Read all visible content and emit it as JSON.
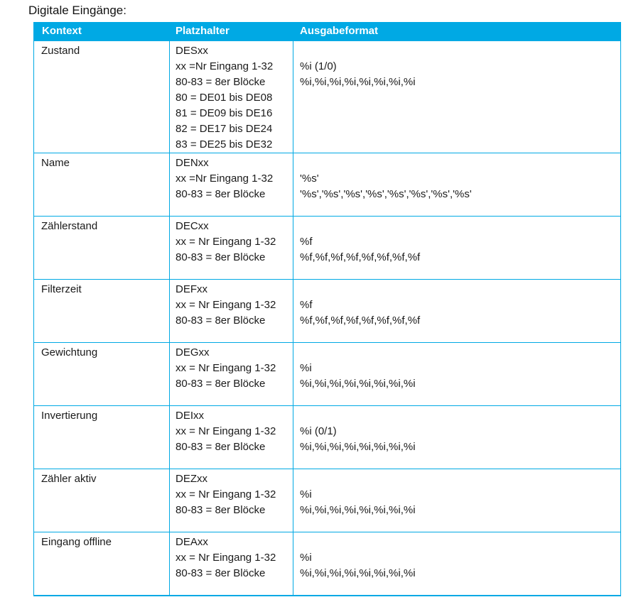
{
  "title": "Digitale Eingänge:",
  "colors": {
    "accent": "#00a9e4",
    "header_text": "#ffffff",
    "body_text": "#1a1a1a"
  },
  "table": {
    "columns": [
      "Kontext",
      "Platzhalter",
      "Ausgabeformat"
    ],
    "rows": [
      {
        "kontext": "Zustand",
        "platzhalter": [
          "DESxx",
          "xx =Nr Eingang 1-32",
          "80-83 = 8er Blöcke",
          "80 = DE01 bis DE08",
          "81 = DE09 bis DE16",
          "82 = DE17 bis DE24",
          "83 = DE25 bis DE32"
        ],
        "ausgabeformat": [
          "%i (1/0)",
          "%i,%i,%i,%i,%i,%i,%i,%i"
        ]
      },
      {
        "kontext": "Name",
        "platzhalter": [
          "DENxx",
          "xx =Nr Eingang 1-32",
          "80-83 = 8er Blöcke"
        ],
        "ausgabeformat": [
          "'%s'",
          "'%s','%s','%s','%s','%s','%s','%s','%s'"
        ]
      },
      {
        "kontext": "Zählerstand",
        "platzhalter": [
          "DECxx",
          "xx = Nr Eingang 1-32",
          "80-83 = 8er Blöcke"
        ],
        "ausgabeformat": [
          "%f",
          "%f,%f,%f,%f,%f,%f,%f,%f"
        ]
      },
      {
        "kontext": "Filterzeit",
        "platzhalter": [
          "DEFxx",
          "xx = Nr Eingang 1-32",
          "80-83 = 8er Blöcke"
        ],
        "ausgabeformat": [
          "%f",
          "%f,%f,%f,%f,%f,%f,%f,%f"
        ]
      },
      {
        "kontext": "Gewichtung",
        "platzhalter": [
          "DEGxx",
          "xx = Nr Eingang 1-32",
          "80-83 = 8er Blöcke"
        ],
        "ausgabeformat": [
          "%i",
          "%i,%i,%i,%i,%i,%i,%i,%i"
        ]
      },
      {
        "kontext": "Invertierung",
        "platzhalter": [
          "DEIxx",
          "xx = Nr Eingang 1-32",
          "80-83 = 8er Blöcke"
        ],
        "ausgabeformat": [
          "%i (0/1)",
          "%i,%i,%i,%i,%i,%i,%i,%i"
        ]
      },
      {
        "kontext": "Zähler aktiv",
        "platzhalter": [
          "DEZxx",
          "xx = Nr Eingang 1-32",
          "80-83 = 8er Blöcke"
        ],
        "ausgabeformat": [
          "%i",
          "%i,%i,%i,%i,%i,%i,%i,%i"
        ]
      },
      {
        "kontext": "Eingang offline",
        "platzhalter": [
          "DEAxx",
          "xx = Nr Eingang 1-32",
          "80-83 = 8er Blöcke"
        ],
        "ausgabeformat": [
          "%i",
          "%i,%i,%i,%i,%i,%i,%i,%i"
        ]
      }
    ]
  }
}
